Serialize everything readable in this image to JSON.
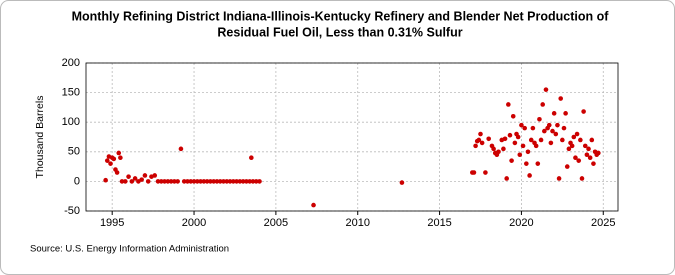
{
  "chart_data": {
    "type": "scatter",
    "title": "Monthly Refining District Indiana-Illinois-Kentucky Refinery and Blender Net Production of",
    "subtitle": "Residual Fuel Oil, Less than 0.31% Sulfur",
    "ylabel": "Thousand Barrels",
    "source": "Source: U.S. Energy Information Administration",
    "color": "#cc0000",
    "grid": true,
    "xlim": [
      1993.4,
      2025.9
    ],
    "xticks": [
      1995,
      2000,
      2005,
      2010,
      2015,
      2020,
      2025
    ],
    "ylim": [
      -50,
      200
    ],
    "yticks": [
      -50,
      0,
      50,
      100,
      150,
      200
    ],
    "x": [
      1994.6,
      1994.7,
      1994.8,
      1994.9,
      1995.0,
      1995.1,
      1995.2,
      1995.3,
      1995.4,
      1995.5,
      1995.6,
      1995.8,
      1996.0,
      1996.2,
      1996.4,
      1996.6,
      1996.8,
      1997.0,
      1997.2,
      1997.4,
      1997.6,
      1997.8,
      1998.0,
      1998.2,
      1998.4,
      1998.6,
      1998.8,
      1999.0,
      1999.2,
      1999.4,
      1999.6,
      1999.8,
      2000.0,
      2000.2,
      2000.4,
      2000.6,
      2000.8,
      2001.0,
      2001.2,
      2001.4,
      2001.6,
      2001.8,
      2002.0,
      2002.2,
      2002.4,
      2002.6,
      2002.8,
      2003.0,
      2003.2,
      2003.4,
      2003.5,
      2003.6,
      2003.8,
      2004.0,
      2007.3,
      2012.7,
      2017.0,
      2017.1,
      2017.2,
      2017.3,
      2017.4,
      2017.5,
      2017.6,
      2017.8,
      2018.0,
      2018.2,
      2018.3,
      2018.4,
      2018.5,
      2018.6,
      2018.8,
      2018.9,
      2019.0,
      2019.1,
      2019.2,
      2019.3,
      2019.4,
      2019.5,
      2019.6,
      2019.7,
      2019.8,
      2019.9,
      2020.0,
      2020.1,
      2020.2,
      2020.3,
      2020.4,
      2020.5,
      2020.6,
      2020.7,
      2020.8,
      2020.9,
      2021.0,
      2021.1,
      2021.2,
      2021.3,
      2021.4,
      2021.5,
      2021.6,
      2021.7,
      2021.8,
      2021.9,
      2022.0,
      2022.1,
      2022.2,
      2022.3,
      2022.4,
      2022.5,
      2022.6,
      2022.7,
      2022.8,
      2022.9,
      2023.0,
      2023.1,
      2023.2,
      2023.3,
      2023.4,
      2023.5,
      2023.6,
      2023.7,
      2023.8,
      2023.9,
      2024.0,
      2024.1,
      2024.2,
      2024.3,
      2024.4,
      2024.5,
      2024.6,
      2024.7
    ],
    "values": [
      2,
      35,
      42,
      30,
      40,
      38,
      20,
      15,
      48,
      40,
      0,
      0,
      8,
      0,
      5,
      0,
      3,
      10,
      0,
      8,
      10,
      0,
      0,
      0,
      0,
      0,
      0,
      0,
      55,
      0,
      0,
      0,
      0,
      0,
      0,
      0,
      0,
      0,
      0,
      0,
      0,
      0,
      0,
      0,
      0,
      0,
      0,
      0,
      0,
      0,
      40,
      0,
      0,
      0,
      -40,
      -2,
      15,
      15,
      60,
      68,
      70,
      80,
      65,
      15,
      72,
      60,
      55,
      48,
      45,
      50,
      70,
      55,
      72,
      5,
      130,
      78,
      35,
      110,
      65,
      80,
      75,
      45,
      95,
      60,
      90,
      30,
      50,
      10,
      70,
      90,
      65,
      60,
      30,
      105,
      70,
      130,
      85,
      155,
      90,
      95,
      65,
      85,
      115,
      80,
      95,
      5,
      140,
      70,
      90,
      115,
      25,
      55,
      65,
      60,
      75,
      40,
      80,
      35,
      70,
      5,
      118,
      60,
      45,
      55,
      40,
      70,
      30,
      50,
      45,
      48
    ]
  }
}
